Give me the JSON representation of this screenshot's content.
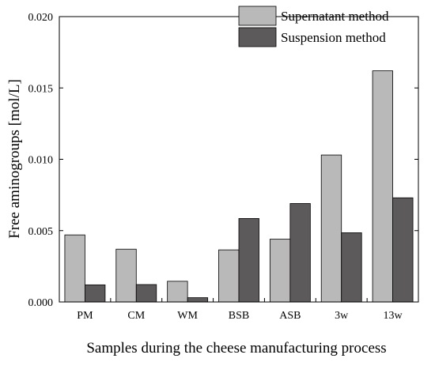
{
  "chart_data": {
    "type": "bar",
    "title": "",
    "xlabel": "Samples during the cheese manufacturing process",
    "ylabel": "Free aminogroups [mol/L]",
    "ylim": [
      0,
      0.02
    ],
    "yticks": [
      "0.000",
      "0.005",
      "0.010",
      "0.015",
      "0.020"
    ],
    "categories": [
      "PM",
      "CM",
      "WM",
      "BSB",
      "ASB",
      "3w",
      "13w"
    ],
    "series": [
      {
        "name": "Supernatant method",
        "color": "#b9b9b9",
        "values": [
          0.0047,
          0.0037,
          0.00145,
          0.00365,
          0.0044,
          0.0103,
          0.0162
        ]
      },
      {
        "name": "Suspension method",
        "color": "#5d5a5b",
        "values": [
          0.0012,
          0.00122,
          0.0003,
          0.00585,
          0.0069,
          0.00485,
          0.0073
        ]
      }
    ],
    "legend_position": "top-right",
    "grid": false
  }
}
